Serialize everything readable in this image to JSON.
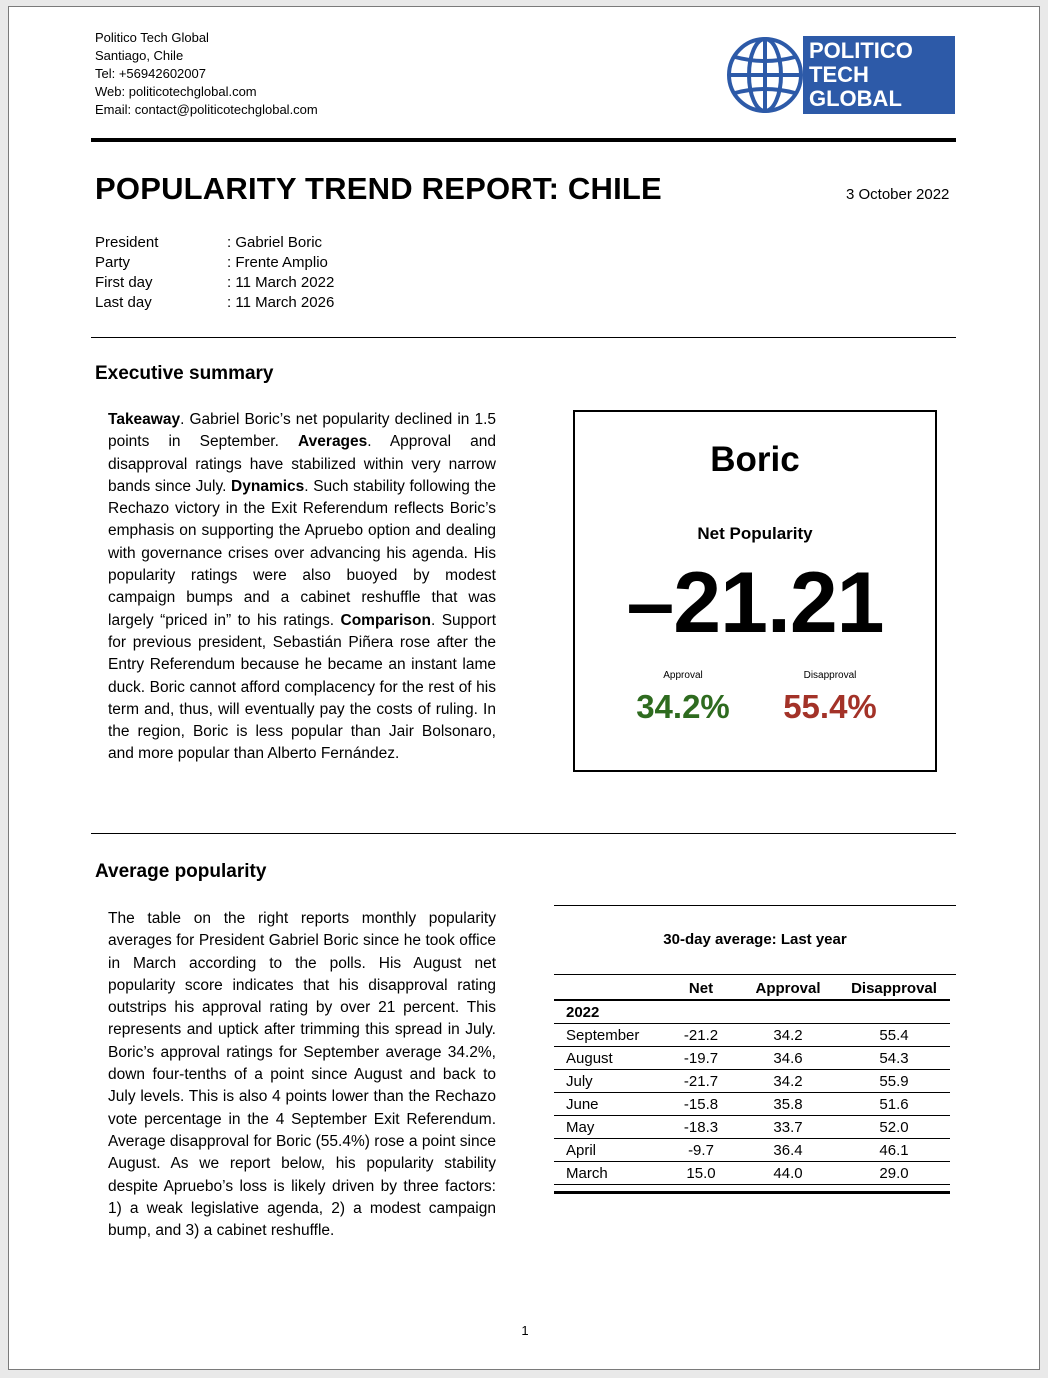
{
  "contact": {
    "org": "Politico Tech Global",
    "city": "Santiago, Chile",
    "tel": "Tel: +56942602007",
    "web": "Web: politicotechglobal.com",
    "email": "Email: contact@politicotechglobal.com"
  },
  "logo": {
    "line1": "POLITICO",
    "line2": "TECH",
    "line3": "GLOBAL",
    "icon": "globe-icon",
    "color": "#2d5aa8"
  },
  "title": "POPULARITY TREND REPORT: CHILE",
  "date": "3 October 2022",
  "meta": [
    {
      "key": "President",
      "value": ": Gabriel Boric"
    },
    {
      "key": "Party",
      "value": ": Frente Amplio"
    },
    {
      "key": "First day",
      "value": ": 11 March 2022"
    },
    {
      "key": "Last day",
      "value": ": 11 March 2026"
    }
  ],
  "executive_summary": {
    "heading": "Executive summary",
    "takeaway_label": "Takeaway",
    "takeaway_text": ". Gabriel Boric’s net popularity declined in 1.5 points in September. ",
    "averages_label": "Averages",
    "averages_text": ". Approval and disapproval ratings have stabilized within very narrow bands since July. ",
    "dynamics_label": "Dynamics",
    "dynamics_text": ". Such stability following the Rechazo victory in the Exit Referendum reflects Boric’s emphasis on supporting the Apruebo option and dealing with governance crises over advancing his agenda. His popularity ratings were also buoyed by modest campaign bumps and a cabinet reshuffle that was largely “priced in” to his ratings. ",
    "comparison_label": "Comparison",
    "comparison_text": ". Support for previous president, Sebastián Piñera rose after the Entry Referendum because he became an instant lame duck. Boric cannot afford complacency for the rest of his term and, thus, will eventually pay the costs of ruling. In the region, Boric is less popular than Jair Bolsonaro, and more popular than Alberto Fernández."
  },
  "scorecard": {
    "name": "Boric",
    "net_label": "Net Popularity",
    "net_value": "–21.21",
    "approval_label": "Approval",
    "approval_value": "34.2%",
    "disapproval_label": "Disapproval",
    "disapproval_value": "55.4%",
    "approval_color": "#2e6b1f",
    "disapproval_color": "#a33228"
  },
  "average_popularity": {
    "heading": "Average popularity",
    "text": "The table on the right reports monthly popularity averages for President Gabriel Boric since he took office in March according to the polls. His August net popularity score indicates that his disapproval rating outstrips his approval rating by over 21 percent. This represents and uptick after trimming this spread in July. Boric’s approval ratings for September average 34.2%, down four-tenths of a point since August and back to July levels. This is also 4 points lower than the Rechazo vote percentage in the 4 September Exit Referendum. Average disapproval for Boric (55.4%) rose a point since August. As we report below, his popularity stability despite Apruebo’s loss is likely driven by three factors: 1) a weak legislative agenda, 2) a modest campaign bump, and 3) a cabinet reshuffle."
  },
  "table": {
    "caption": "30-day average: Last year",
    "headers": [
      "",
      "Net",
      "Approval",
      "Disapproval"
    ],
    "year": "2022",
    "rows": [
      [
        "September",
        "-21.2",
        "34.2",
        "55.4"
      ],
      [
        "August",
        "-19.7",
        "34.6",
        "54.3"
      ],
      [
        "July",
        "-21.7",
        "34.2",
        "55.9"
      ],
      [
        "June",
        "-15.8",
        "35.8",
        "51.6"
      ],
      [
        "May",
        "-18.3",
        "33.7",
        "52.0"
      ],
      [
        "April",
        "-9.7",
        "36.4",
        "46.1"
      ],
      [
        "March",
        "15.0",
        "44.0",
        "29.0"
      ]
    ]
  },
  "page_number": "1"
}
